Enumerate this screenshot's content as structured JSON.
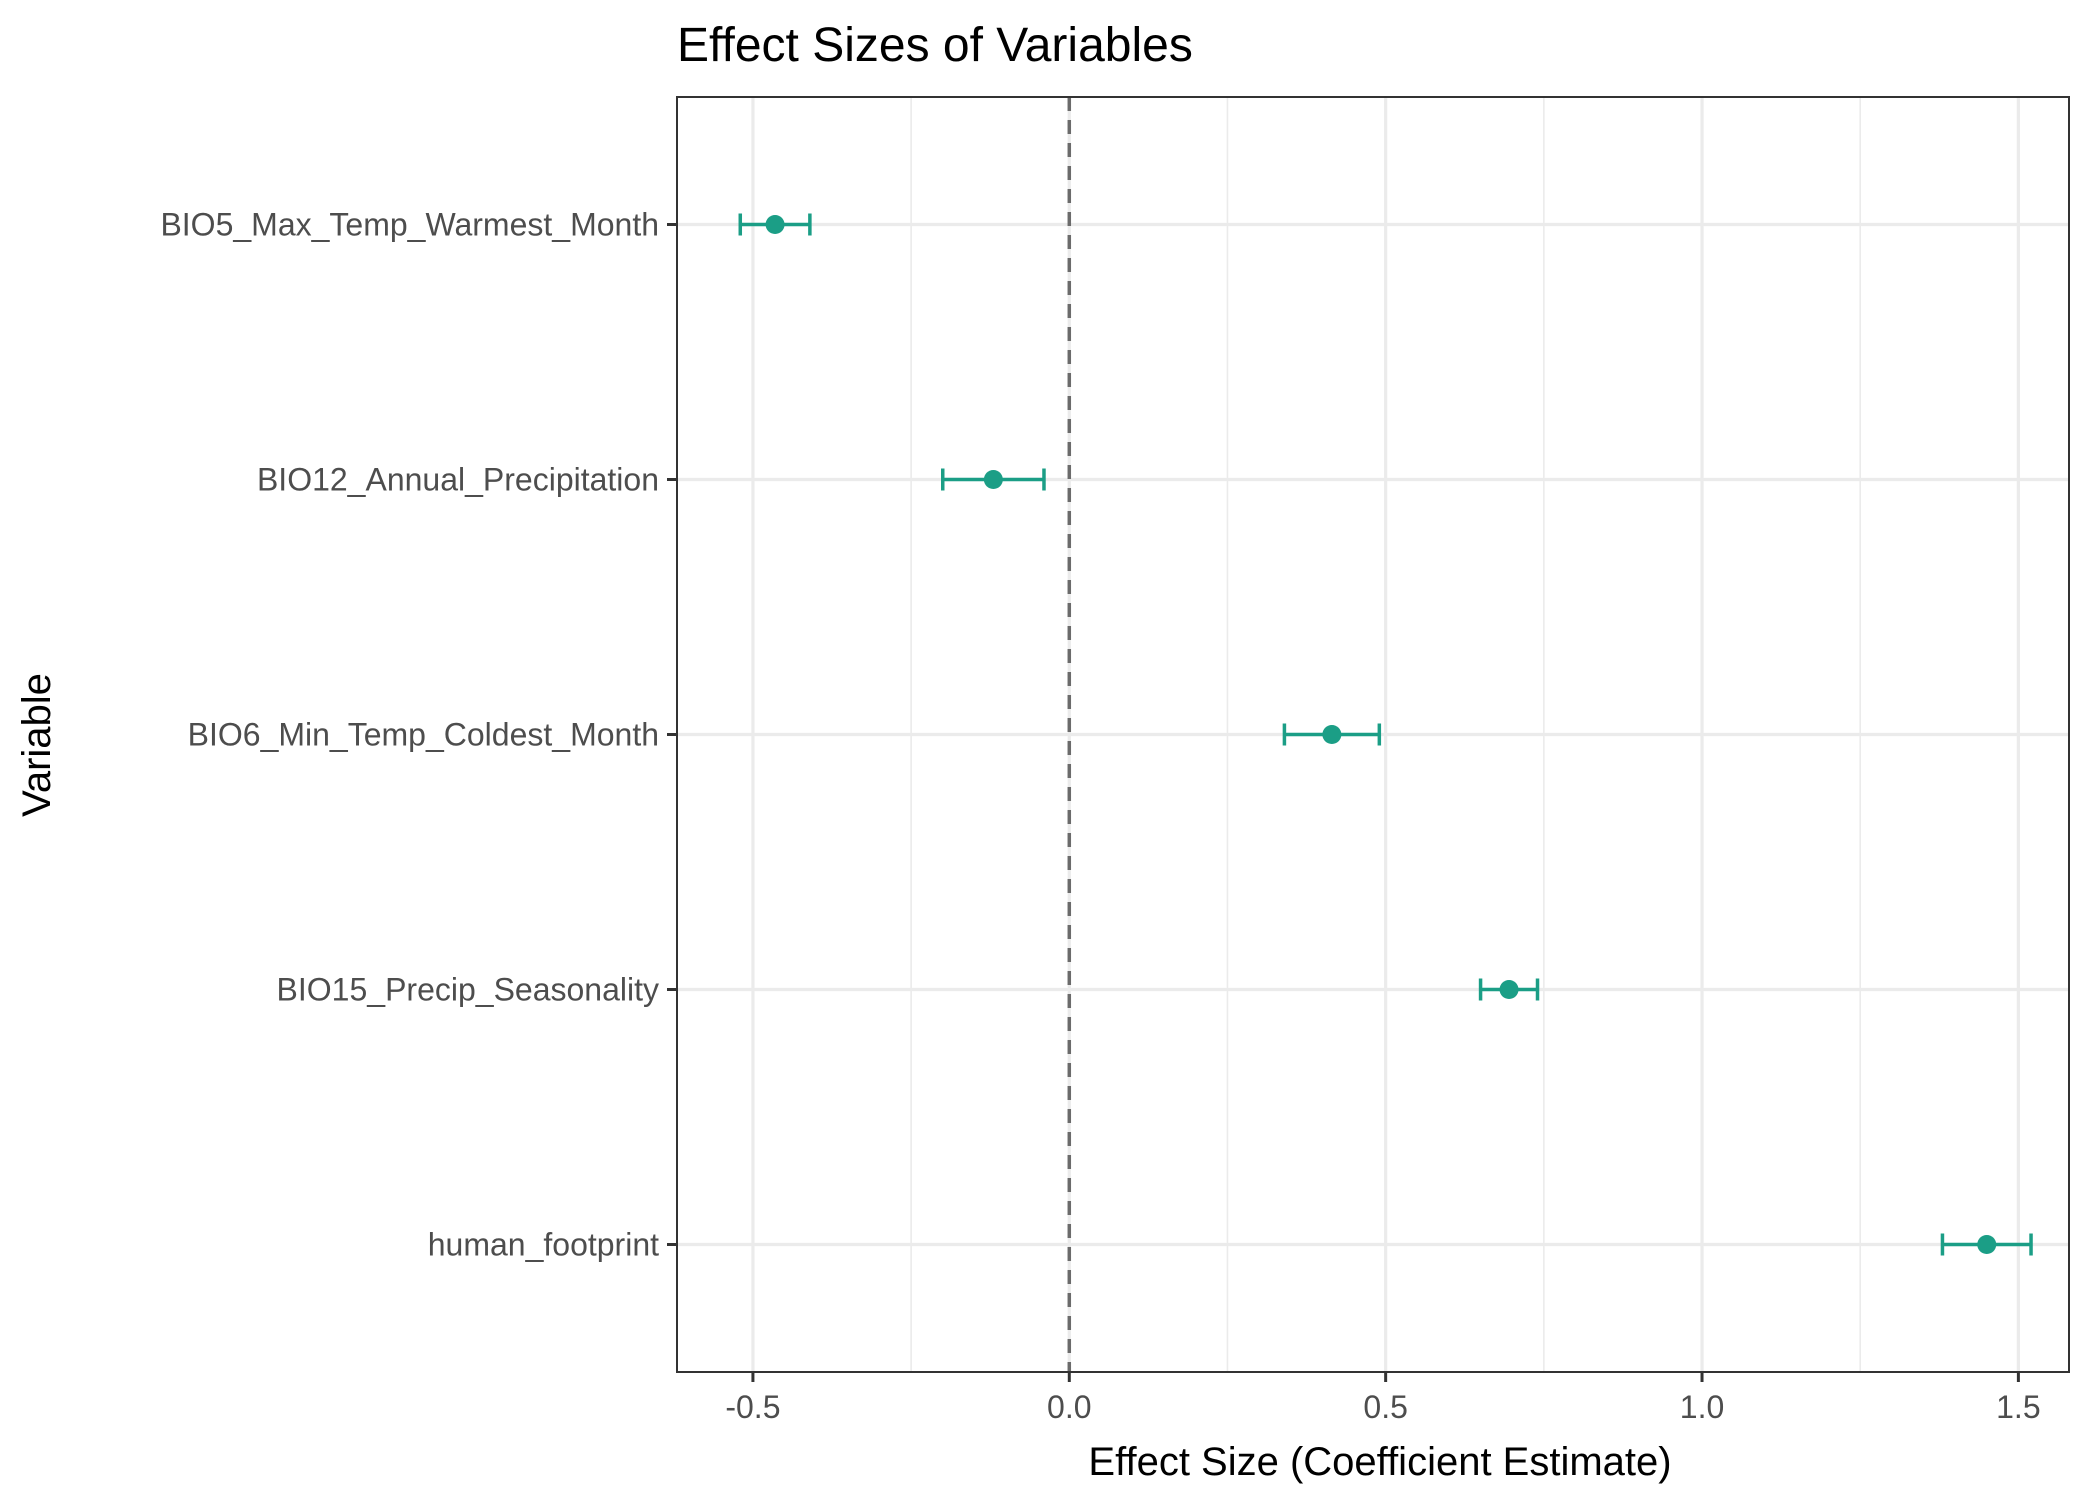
{
  "chart_data": {
    "type": "dot-errorbar",
    "title": "Effect Sizes of Variables",
    "xlabel": "Effect Size (Coefficient Estimate)",
    "ylabel": "Variable",
    "xlim": [
      -0.62,
      1.58
    ],
    "x_ticks": [
      -0.5,
      0.0,
      0.5,
      1.0,
      1.5
    ],
    "x_tick_labels": [
      "-0.5",
      "0.0",
      "0.5",
      "1.0",
      "1.5"
    ],
    "reference_line": {
      "x": 0,
      "style": "dashed"
    },
    "color": "#1b9e86",
    "grid": true,
    "legend": "none",
    "points": [
      {
        "variable": "human_footprint",
        "estimate": 1.45,
        "lower": 1.38,
        "upper": 1.52
      },
      {
        "variable": "BIO15_Precip_Seasonality",
        "estimate": 0.695,
        "lower": 0.65,
        "upper": 0.74
      },
      {
        "variable": "BIO6_Min_Temp_Coldest_Month",
        "estimate": 0.415,
        "lower": 0.34,
        "upper": 0.49
      },
      {
        "variable": "BIO12_Annual_Precipitation",
        "estimate": -0.12,
        "lower": -0.2,
        "upper": -0.04
      },
      {
        "variable": "BIO5_Max_Temp_Warmest_Month",
        "estimate": -0.465,
        "lower": -0.52,
        "upper": -0.41
      }
    ]
  }
}
